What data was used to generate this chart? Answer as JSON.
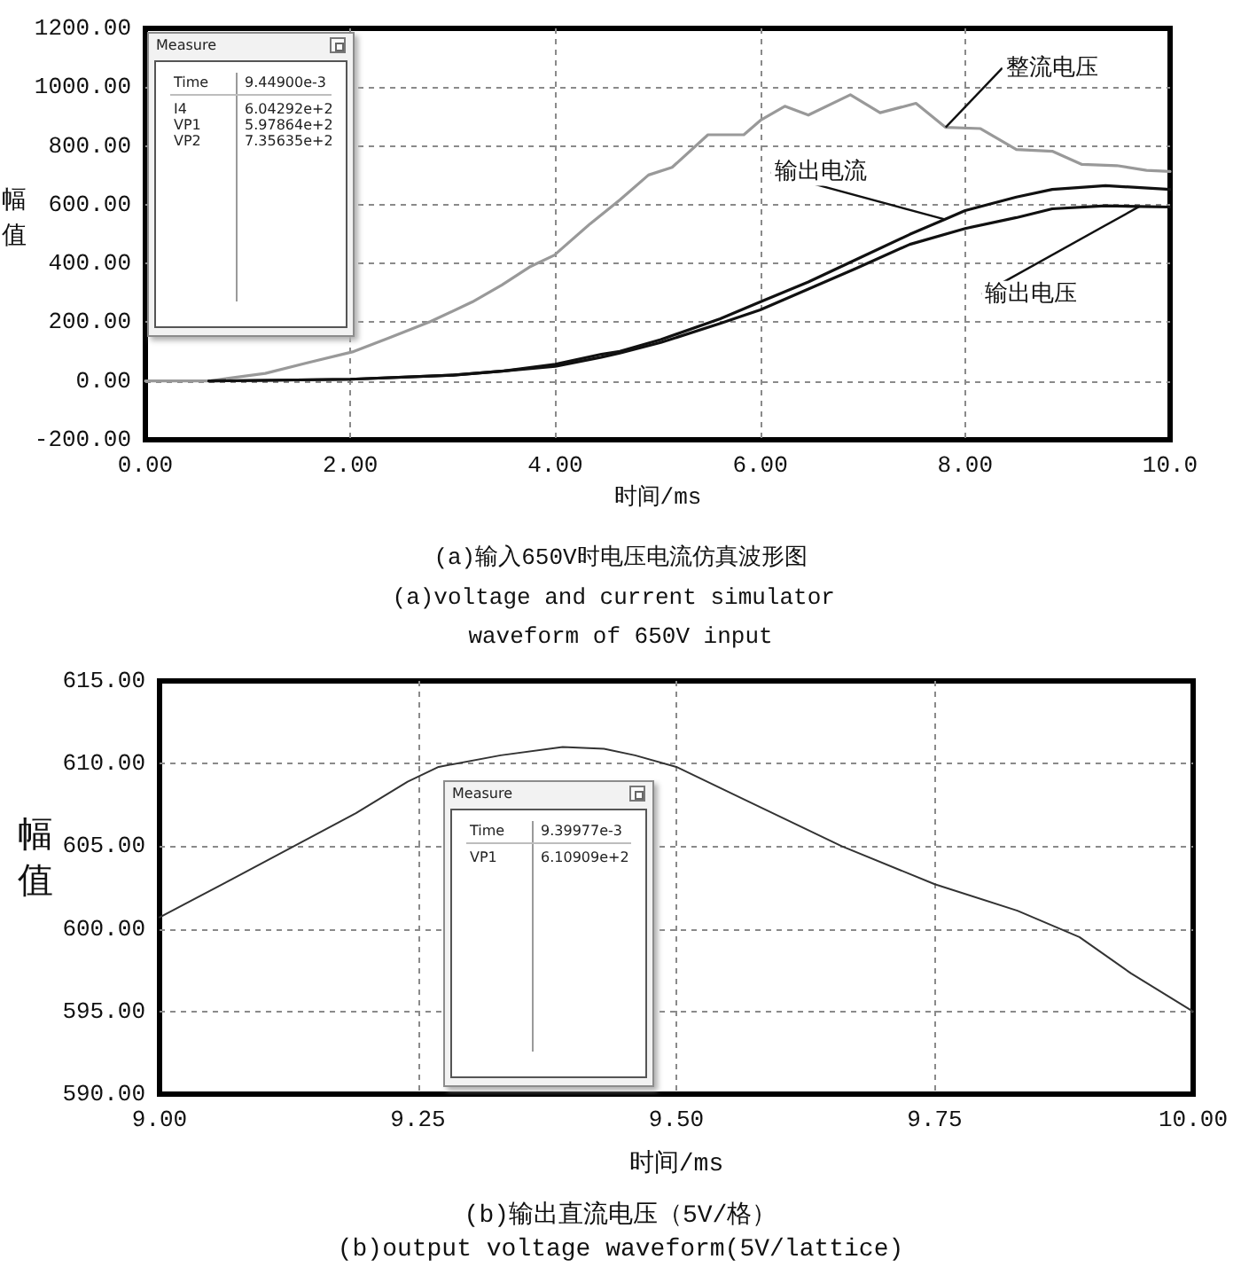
{
  "chart_data": [
    {
      "type": "line",
      "title": "(a)输入650V时电压电流仿真波形图",
      "subtitle": "(a)voltage and current simulator waveform of 650V input",
      "xlabel": "时间/ms",
      "ylabel": "幅值",
      "xlim": [
        0,
        10
      ],
      "xticks": [
        {
          "value": 0,
          "label": "0.00"
        },
        {
          "value": 2,
          "label": "2.00"
        },
        {
          "value": 4,
          "label": "4.00"
        },
        {
          "value": 6,
          "label": "6.00"
        },
        {
          "value": 8,
          "label": "8.00"
        },
        {
          "value": 10,
          "label": "10.0"
        }
      ],
      "ylim": [
        -200,
        1200
      ],
      "yticks": [
        {
          "value": -200,
          "label": "-200.00"
        },
        {
          "value": 0,
          "label": "0.00"
        },
        {
          "value": 200,
          "label": "200.00"
        },
        {
          "value": 400,
          "label": "400.00"
        },
        {
          "value": 600,
          "label": "600.00"
        },
        {
          "value": 800,
          "label": "800.00"
        },
        {
          "value": 1000,
          "label": "1000.00"
        },
        {
          "value": 1200,
          "label": "1200.00"
        }
      ],
      "grid": true,
      "marker": "none",
      "line_style": "solid",
      "series": [
        {
          "name": "整流电压",
          "color": "#999999",
          "x": [
            0,
            0.62,
            1.17,
            1.57,
            2.02,
            2.38,
            2.78,
            3.19,
            3.48,
            3.76,
            3.99,
            4.34,
            4.63,
            4.91,
            5.14,
            5.49,
            5.84,
            6.01,
            6.24,
            6.47,
            6.88,
            7.17,
            7.52,
            7.81,
            8.15,
            8.5,
            8.85,
            9.14,
            9.48,
            9.77,
            10
          ],
          "values": [
            0,
            0,
            26,
            61,
            99,
            147,
            202,
            269,
            327,
            390,
            428,
            535,
            616,
            701,
            727,
            838,
            838,
            889,
            935,
            905,
            974,
            913,
            945,
            863,
            859,
            788,
            782,
            737,
            733,
            717,
            713
          ]
        },
        {
          "name": "输出电流",
          "color": "#111111",
          "x": [
            0.62,
            2,
            3,
            3.5,
            4,
            4.45,
            4.63,
            5.03,
            5.61,
            6,
            6.47,
            6.94,
            7.46,
            7.8,
            8,
            8.5,
            8.85,
            9.37,
            10
          ],
          "values": [
            0,
            6,
            20,
            34,
            57,
            91,
            101,
            141,
            212,
            269,
            337,
            414,
            499,
            550,
            580,
            626,
            652,
            665,
            652
          ]
        },
        {
          "name": "输出电压",
          "color": "#111111",
          "x": [
            0.62,
            2,
            3,
            3.5,
            4,
            4.45,
            4.63,
            5.03,
            5.61,
            6,
            6.47,
            6.94,
            7.46,
            8,
            8.5,
            8.85,
            9.37,
            9.7,
            10
          ],
          "values": [
            0,
            6,
            20,
            34,
            50,
            81,
            95,
            131,
            196,
            242,
            313,
            384,
            465,
            519,
            556,
            586,
            596,
            594,
            592
          ]
        }
      ],
      "annotations": [
        "Measure",
        "Time",
        "9.44900e-3",
        "I4",
        "6.04292e+2",
        "VP1",
        "5.97864e+2",
        "VP2",
        "7.35635e+2"
      ]
    },
    {
      "type": "line",
      "title": "(b)输出直流电压（5V/格）",
      "subtitle": "(b)output voltage waveform(5V/lattice)",
      "xlabel": "时间/ms",
      "ylabel": "幅值",
      "xlim": [
        9,
        10
      ],
      "xticks": [
        {
          "value": 9,
          "label": "9.00"
        },
        {
          "value": 9.25,
          "label": "9.25"
        },
        {
          "value": 9.5,
          "label": "9.50"
        },
        {
          "value": 9.75,
          "label": "9.75"
        },
        {
          "value": 10,
          "label": "10.00"
        }
      ],
      "ylim": [
        590,
        615
      ],
      "yticks": [
        {
          "value": 590,
          "label": "590.00"
        },
        {
          "value": 595,
          "label": "595.00"
        },
        {
          "value": 600,
          "label": "600.00"
        },
        {
          "value": 605,
          "label": "605.00"
        },
        {
          "value": 610,
          "label": "610.00"
        },
        {
          "value": 615,
          "label": "615.00"
        }
      ],
      "grid": true,
      "marker": "none",
      "line_style": "solid",
      "x": [
        9,
        9.07,
        9.13,
        9.19,
        9.24,
        9.27,
        9.33,
        9.39,
        9.43,
        9.46,
        9.5,
        9.57,
        9.66,
        9.75,
        9.83,
        9.89,
        9.94,
        10
      ],
      "series": [
        {
          "color": "#333333",
          "values": [
            600.7,
            603.0,
            605.0,
            607.0,
            608.9,
            609.8,
            610.5,
            611.0,
            610.9,
            610.5,
            609.8,
            607.7,
            605.0,
            602.7,
            601.1,
            599.5,
            597.3,
            595.0
          ]
        }
      ],
      "annotations": [
        "Measure",
        "Time",
        "9.39977e-3",
        "VP1",
        "6.10909e+2"
      ]
    }
  ]
}
